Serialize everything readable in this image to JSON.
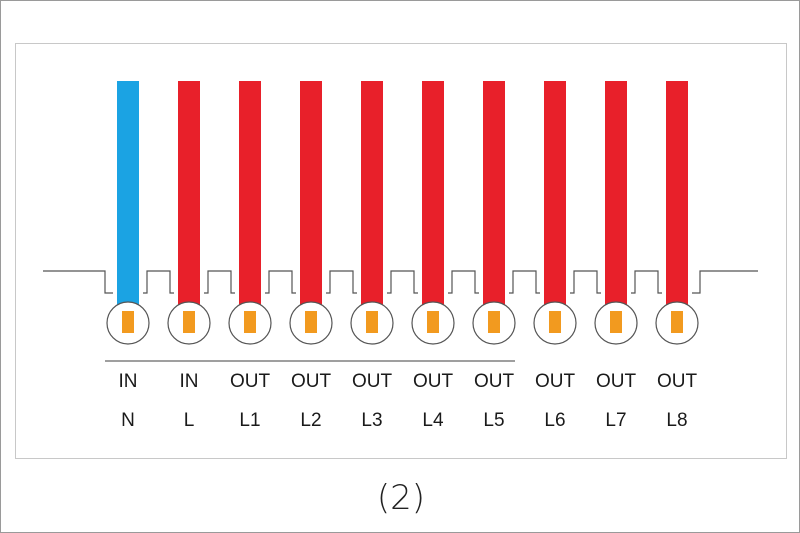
{
  "colors": {
    "neutral_wire": "#1ba3e3",
    "live_wire": "#e8202a",
    "terminal": "#f29a1f",
    "outline": "#555555",
    "text": "#1a1a1a"
  },
  "terminals": [
    {
      "type": "IN",
      "line": "N",
      "wire_color": "neutral"
    },
    {
      "type": "IN",
      "line": "L",
      "wire_color": "live"
    },
    {
      "type": "OUT",
      "line": "L1",
      "wire_color": "live"
    },
    {
      "type": "OUT",
      "line": "L2",
      "wire_color": "live"
    },
    {
      "type": "OUT",
      "line": "L3",
      "wire_color": "live"
    },
    {
      "type": "OUT",
      "line": "L4",
      "wire_color": "live"
    },
    {
      "type": "OUT",
      "line": "L5",
      "wire_color": "live"
    },
    {
      "type": "OUT",
      "line": "L6",
      "wire_color": "live"
    },
    {
      "type": "OUT",
      "line": "L7",
      "wire_color": "live"
    },
    {
      "type": "OUT",
      "line": "L8",
      "wire_color": "live"
    }
  ],
  "caption": "(2)"
}
